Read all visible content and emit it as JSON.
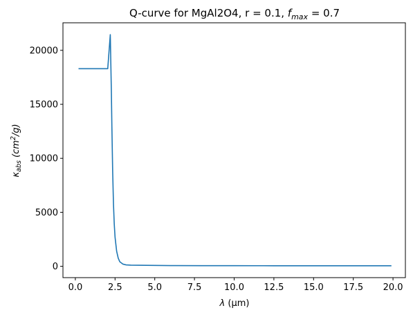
{
  "chart_data": {
    "type": "line",
    "title_parts": {
      "prefix": "Q-curve for MgAl2O4, r = 0.1, ",
      "f_symbol": "f",
      "f_subscript": "max",
      "suffix": " = 0.7"
    },
    "xlabel_parts": {
      "lambda_symbol": "λ",
      "unit": "(μm)"
    },
    "ylabel_parts": {
      "kappa_symbol": "κ",
      "kappa_subscript": "abs",
      "unit_open": "(cm",
      "unit_exp": "2",
      "unit_close": "/g)"
    },
    "xlim": [
      -0.78,
      20.78
    ],
    "ylim": [
      -1050,
      22550
    ],
    "xticks": [
      0.0,
      2.5,
      5.0,
      7.5,
      10.0,
      12.5,
      15.0,
      17.5,
      20.0
    ],
    "xtick_labels": [
      "0.0",
      "2.5",
      "5.0",
      "7.5",
      "10.0",
      "12.5",
      "15.0",
      "17.5",
      "20.0"
    ],
    "yticks": [
      0,
      5000,
      10000,
      15000,
      20000
    ],
    "ytick_labels": [
      "0",
      "5000",
      "10000",
      "15000",
      "20000"
    ],
    "grid": false,
    "legend": "none",
    "series": [
      {
        "color": "#1f77b4",
        "x": [
          0.2,
          2.0,
          2.04,
          2.2,
          2.27,
          2.3,
          2.35,
          2.4,
          2.45,
          2.5,
          2.6,
          2.7,
          2.8,
          3.0,
          3.2,
          3.5,
          4.0,
          5.0,
          6.0,
          8.0,
          10.0,
          12.5,
          15.0,
          17.5,
          19.9
        ],
        "y": [
          18300,
          18300,
          18300,
          21450,
          16000,
          13000,
          8800,
          5800,
          3900,
          2700,
          1400,
          750,
          420,
          200,
          130,
          105,
          95,
          80,
          65,
          60,
          55,
          52,
          50,
          50,
          50
        ]
      }
    ]
  }
}
